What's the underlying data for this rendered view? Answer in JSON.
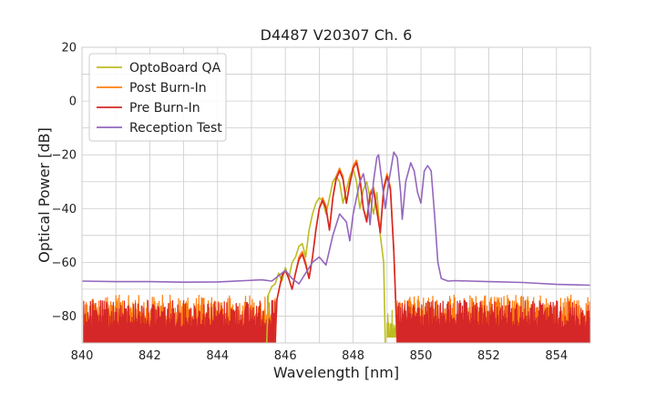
{
  "chart_data": {
    "type": "line",
    "title": "D4487 V20307 Ch. 6",
    "xlabel": "Wavelength [nm]",
    "ylabel": "Optical Power [dB]",
    "xlim": [
      840,
      855
    ],
    "ylim": [
      -90,
      20
    ],
    "xticks": [
      840,
      842,
      844,
      846,
      848,
      850,
      852,
      854
    ],
    "yticks": [
      20,
      0,
      -20,
      -40,
      -60,
      -80
    ],
    "ytick_labels": [
      "20",
      "0",
      "−20",
      "−40",
      "−60",
      "−80"
    ],
    "grid": true,
    "legend_position": "top-left",
    "series": [
      {
        "name": "OptoBoard QA",
        "color": "#bcbd22",
        "points": [
          [
            845.45,
            -90
          ],
          [
            845.5,
            -72
          ],
          [
            845.6,
            -69
          ],
          [
            845.7,
            -68
          ],
          [
            845.8,
            -64
          ],
          [
            845.9,
            -67
          ],
          [
            846.0,
            -62
          ],
          [
            846.1,
            -66
          ],
          [
            846.2,
            -60
          ],
          [
            846.3,
            -58
          ],
          [
            846.4,
            -54
          ],
          [
            846.5,
            -53
          ],
          [
            846.6,
            -58
          ],
          [
            846.7,
            -48
          ],
          [
            846.8,
            -42
          ],
          [
            846.9,
            -38
          ],
          [
            847.0,
            -36
          ],
          [
            847.1,
            -37
          ],
          [
            847.2,
            -42
          ],
          [
            847.3,
            -36
          ],
          [
            847.4,
            -30
          ],
          [
            847.5,
            -28
          ],
          [
            847.6,
            -30
          ],
          [
            847.7,
            -38
          ],
          [
            847.8,
            -33
          ],
          [
            847.9,
            -28
          ],
          [
            848.0,
            -25
          ],
          [
            848.1,
            -30
          ],
          [
            848.2,
            -40
          ],
          [
            848.3,
            -33
          ],
          [
            848.4,
            -30
          ],
          [
            848.5,
            -36
          ],
          [
            848.6,
            -42
          ],
          [
            848.7,
            -34
          ],
          [
            848.8,
            -50
          ],
          [
            848.9,
            -60
          ],
          [
            848.95,
            -90
          ]
        ],
        "noise_floor": [
          [
            849.0,
            849.5,
            -88,
            -76
          ]
        ]
      },
      {
        "name": "Post Burn-In",
        "color": "#ff7f0e",
        "points": [
          [
            845.7,
            -90
          ],
          [
            845.75,
            -74
          ],
          [
            845.9,
            -65
          ],
          [
            846.0,
            -63
          ],
          [
            846.1,
            -66
          ],
          [
            846.2,
            -70
          ],
          [
            846.3,
            -64
          ],
          [
            846.4,
            -58
          ],
          [
            846.5,
            -56
          ],
          [
            846.6,
            -60
          ],
          [
            846.7,
            -66
          ],
          [
            846.8,
            -58
          ],
          [
            846.9,
            -48
          ],
          [
            847.0,
            -40
          ],
          [
            847.1,
            -36
          ],
          [
            847.2,
            -39
          ],
          [
            847.3,
            -48
          ],
          [
            847.4,
            -36
          ],
          [
            847.5,
            -28
          ],
          [
            847.6,
            -25
          ],
          [
            847.7,
            -28
          ],
          [
            847.8,
            -38
          ],
          [
            847.9,
            -30
          ],
          [
            848.0,
            -24
          ],
          [
            848.1,
            -22
          ],
          [
            848.2,
            -28
          ],
          [
            848.3,
            -40
          ],
          [
            848.4,
            -44
          ],
          [
            848.5,
            -34
          ],
          [
            848.6,
            -32
          ],
          [
            848.7,
            -40
          ],
          [
            848.8,
            -48
          ],
          [
            848.9,
            -32
          ],
          [
            849.0,
            -27
          ],
          [
            849.1,
            -32
          ],
          [
            849.2,
            -55
          ],
          [
            849.3,
            -90
          ]
        ],
        "noise_floor": [
          [
            840.05,
            845.7,
            -90,
            -72
          ],
          [
            849.3,
            855.0,
            -90,
            -72
          ]
        ]
      },
      {
        "name": "Pre Burn-In",
        "color": "#d62728",
        "points": [
          [
            845.7,
            -90
          ],
          [
            845.75,
            -74
          ],
          [
            845.9,
            -65
          ],
          [
            846.0,
            -63
          ],
          [
            846.1,
            -66
          ],
          [
            846.2,
            -70
          ],
          [
            846.3,
            -64
          ],
          [
            846.4,
            -59
          ],
          [
            846.5,
            -57
          ],
          [
            846.6,
            -61
          ],
          [
            846.7,
            -66
          ],
          [
            846.8,
            -58
          ],
          [
            846.9,
            -48
          ],
          [
            847.0,
            -40
          ],
          [
            847.1,
            -37
          ],
          [
            847.2,
            -40
          ],
          [
            847.3,
            -48
          ],
          [
            847.4,
            -36
          ],
          [
            847.5,
            -29
          ],
          [
            847.6,
            -26
          ],
          [
            847.7,
            -29
          ],
          [
            847.8,
            -38
          ],
          [
            847.9,
            -31
          ],
          [
            848.0,
            -25
          ],
          [
            848.1,
            -23
          ],
          [
            848.2,
            -29
          ],
          [
            848.3,
            -40
          ],
          [
            848.4,
            -45
          ],
          [
            848.5,
            -35
          ],
          [
            848.6,
            -33
          ],
          [
            848.7,
            -41
          ],
          [
            848.8,
            -49
          ],
          [
            848.9,
            -33
          ],
          [
            849.0,
            -28
          ],
          [
            849.1,
            -33
          ],
          [
            849.2,
            -56
          ],
          [
            849.3,
            -90
          ]
        ],
        "noise_floor": [
          [
            840.05,
            845.7,
            -90,
            -74
          ],
          [
            849.3,
            855.0,
            -90,
            -74
          ]
        ]
      },
      {
        "name": "Reception Test",
        "color": "#9467bd",
        "points": [
          [
            840.0,
            -67
          ],
          [
            841.0,
            -67.2
          ],
          [
            842.0,
            -67.2
          ],
          [
            843.0,
            -67.4
          ],
          [
            844.0,
            -67.3
          ],
          [
            844.8,
            -66.8
          ],
          [
            845.3,
            -66.5
          ],
          [
            845.6,
            -67
          ],
          [
            845.8,
            -65
          ],
          [
            846.0,
            -63
          ],
          [
            846.2,
            -66
          ],
          [
            846.4,
            -68
          ],
          [
            846.6,
            -64
          ],
          [
            846.8,
            -60
          ],
          [
            847.0,
            -58
          ],
          [
            847.2,
            -61
          ],
          [
            847.4,
            -50
          ],
          [
            847.6,
            -42
          ],
          [
            847.8,
            -45
          ],
          [
            847.9,
            -52
          ],
          [
            848.0,
            -42
          ],
          [
            848.2,
            -30
          ],
          [
            848.3,
            -27
          ],
          [
            848.4,
            -34
          ],
          [
            848.5,
            -46
          ],
          [
            848.6,
            -30
          ],
          [
            848.7,
            -21
          ],
          [
            848.75,
            -20
          ],
          [
            848.85,
            -30
          ],
          [
            848.95,
            -40
          ],
          [
            849.05,
            -30
          ],
          [
            849.2,
            -19
          ],
          [
            849.3,
            -21
          ],
          [
            849.4,
            -34
          ],
          [
            849.45,
            -44
          ],
          [
            849.55,
            -30
          ],
          [
            849.7,
            -23
          ],
          [
            849.8,
            -26
          ],
          [
            849.9,
            -34
          ],
          [
            850.0,
            -38
          ],
          [
            850.1,
            -26
          ],
          [
            850.2,
            -24
          ],
          [
            850.3,
            -26
          ],
          [
            850.4,
            -42
          ],
          [
            850.5,
            -60
          ],
          [
            850.6,
            -66
          ],
          [
            850.8,
            -67
          ],
          [
            851.0,
            -66.8
          ],
          [
            852.0,
            -67.2
          ],
          [
            853.0,
            -67.5
          ],
          [
            854.0,
            -68.2
          ],
          [
            855.0,
            -68.5
          ]
        ]
      }
    ]
  }
}
